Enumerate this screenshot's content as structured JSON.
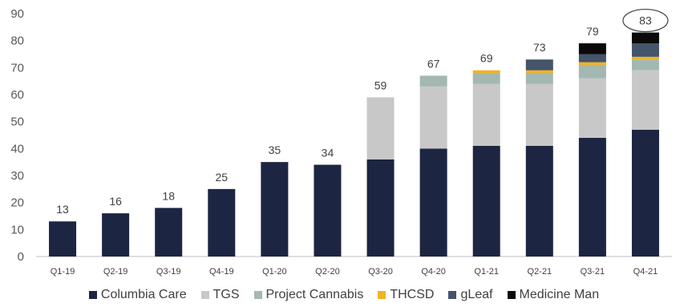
{
  "chart_data": {
    "type": "bar",
    "stacked": true,
    "title": "",
    "xlabel": "",
    "ylabel": "",
    "ylim": [
      0,
      90
    ],
    "yticks": [
      0,
      10,
      20,
      30,
      40,
      50,
      60,
      70,
      80,
      90
    ],
    "grid": false,
    "legend_position": "bottom",
    "categories": [
      "Q1-19",
      "Q2-19",
      "Q3-19",
      "Q4-19",
      "Q1-20",
      "Q2-20",
      "Q3-20",
      "Q4-20",
      "Q1-21",
      "Q2-21",
      "Q3-21",
      "Q4-21"
    ],
    "totals": [
      "13",
      "16",
      "18",
      "25",
      "35",
      "34",
      "59",
      "67",
      "69",
      "73",
      "79",
      "83"
    ],
    "highlighted_total_index": 11,
    "series": [
      {
        "name": "Columbia Care",
        "color": "#1c2541",
        "values": [
          13,
          16,
          18,
          25,
          35,
          34,
          36,
          40,
          41,
          41,
          44,
          47
        ]
      },
      {
        "name": "TGS",
        "color": "#c8c8c8",
        "values": [
          0,
          0,
          0,
          0,
          0,
          0,
          23,
          23,
          23,
          23,
          22,
          22
        ]
      },
      {
        "name": "Project Cannabis",
        "color": "#a3b8b0",
        "values": [
          0,
          0,
          0,
          0,
          0,
          0,
          0,
          4,
          4,
          4,
          5,
          4
        ]
      },
      {
        "name": "THCSD",
        "color": "#f0b323",
        "values": [
          0,
          0,
          0,
          0,
          0,
          0,
          0,
          0,
          1,
          1,
          1,
          1
        ]
      },
      {
        "name": "gLeaf",
        "color": "#44546a",
        "values": [
          0,
          0,
          0,
          0,
          0,
          0,
          0,
          0,
          0,
          4,
          3,
          5
        ]
      },
      {
        "name": "Medicine Man",
        "color": "#0a0a0a",
        "values": [
          0,
          0,
          0,
          0,
          0,
          0,
          0,
          0,
          0,
          0,
          4,
          4
        ]
      }
    ]
  }
}
